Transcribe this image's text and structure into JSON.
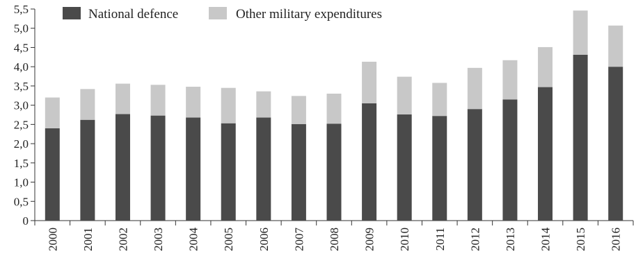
{
  "chart_data": {
    "type": "bar",
    "stacked": true,
    "categories": [
      "2000",
      "2001",
      "2002",
      "2003",
      "2004",
      "2005",
      "2006",
      "2007",
      "2008",
      "2009",
      "2010",
      "2011",
      "2012",
      "2013",
      "2014",
      "2015",
      "2016"
    ],
    "series": [
      {
        "name": "National defence",
        "color": "#4a4a4a",
        "values": [
          2.4,
          2.62,
          2.77,
          2.73,
          2.68,
          2.53,
          2.68,
          2.51,
          2.52,
          3.05,
          2.76,
          2.72,
          2.9,
          3.15,
          3.47,
          4.31,
          4.0
        ]
      },
      {
        "name": "Other military expenditures",
        "color": "#c8c8c8",
        "values": [
          0.8,
          0.8,
          0.79,
          0.8,
          0.8,
          0.92,
          0.68,
          0.73,
          0.78,
          1.08,
          0.98,
          0.86,
          1.07,
          1.02,
          1.04,
          1.15,
          1.07
        ]
      }
    ],
    "y_ticks": [
      "0",
      "0,5",
      "1,0",
      "1,5",
      "2,0",
      "2,5",
      "3,0",
      "3,5",
      "4,0",
      "4,5",
      "5,0",
      "5,5"
    ],
    "ylim": [
      0,
      5.5
    ],
    "legend_position": "top-left",
    "grid": false
  }
}
